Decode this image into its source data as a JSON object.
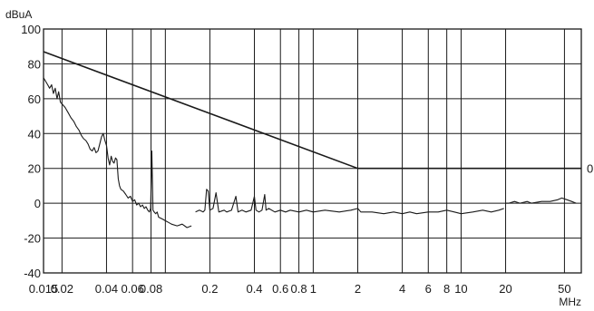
{
  "chart_data": {
    "type": "line",
    "ylabel": "dBuA",
    "xlabel": "MHz",
    "x_scale": "log",
    "xlim": [
      0.015,
      65
    ],
    "ylim": [
      -40,
      100
    ],
    "grid": true,
    "x_ticks": [
      {
        "value": 0.015,
        "label": "0.015"
      },
      {
        "value": 0.02,
        "label": "0.02"
      },
      {
        "value": 0.04,
        "label": "0.04"
      },
      {
        "value": 0.06,
        "label": "0.06"
      },
      {
        "value": 0.08,
        "label": "0.08"
      },
      {
        "value": 0.1,
        "label": ""
      },
      {
        "value": 0.2,
        "label": "0.2"
      },
      {
        "value": 0.4,
        "label": "0.4"
      },
      {
        "value": 0.6,
        "label": "0.6"
      },
      {
        "value": 0.8,
        "label": "0.8"
      },
      {
        "value": 1,
        "label": "1"
      },
      {
        "value": 2,
        "label": "2"
      },
      {
        "value": 4,
        "label": "4"
      },
      {
        "value": 6,
        "label": "6"
      },
      {
        "value": 8,
        "label": "8"
      },
      {
        "value": 10,
        "label": "10"
      },
      {
        "value": 20,
        "label": "20"
      },
      {
        "value": 50,
        "label": "50"
      }
    ],
    "y_ticks": [
      {
        "value": 100,
        "label": "100"
      },
      {
        "value": 80,
        "label": "80"
      },
      {
        "value": 60,
        "label": "60"
      },
      {
        "value": 40,
        "label": "40"
      },
      {
        "value": 20,
        "label": "20"
      },
      {
        "value": 0,
        "label": "0"
      },
      {
        "value": -20,
        "label": "-20"
      },
      {
        "value": -40,
        "label": "-40"
      }
    ],
    "right_annotation": {
      "y": 20,
      "label": "0"
    },
    "series": [
      {
        "role": "limit",
        "color": "#1a1a1a",
        "points": [
          [
            0.015,
            87
          ],
          [
            2,
            20
          ],
          [
            65,
            20
          ]
        ]
      },
      {
        "role": "measurement",
        "color": "#1a1a1a",
        "segments": [
          [
            [
              0.015,
              72
            ],
            [
              0.0155,
              70
            ],
            [
              0.016,
              68
            ],
            [
              0.0165,
              66
            ],
            [
              0.017,
              68
            ],
            [
              0.0175,
              63
            ],
            [
              0.018,
              66
            ],
            [
              0.0185,
              60
            ],
            [
              0.019,
              64
            ],
            [
              0.0195,
              58
            ],
            [
              0.02,
              57
            ],
            [
              0.021,
              55
            ],
            [
              0.022,
              52
            ],
            [
              0.023,
              49
            ],
            [
              0.024,
              47
            ],
            [
              0.025,
              44
            ],
            [
              0.026,
              42
            ],
            [
              0.027,
              39
            ],
            [
              0.028,
              37
            ],
            [
              0.029,
              36
            ],
            [
              0.03,
              34
            ],
            [
              0.031,
              31
            ],
            [
              0.032,
              30
            ],
            [
              0.033,
              32
            ],
            [
              0.034,
              29
            ],
            [
              0.035,
              30
            ],
            [
              0.036,
              34
            ],
            [
              0.037,
              38
            ],
            [
              0.038,
              40
            ],
            [
              0.039,
              36
            ],
            [
              0.04,
              33
            ],
            [
              0.041,
              26
            ],
            [
              0.042,
              22
            ],
            [
              0.043,
              27
            ],
            [
              0.044,
              24
            ],
            [
              0.045,
              23
            ],
            [
              0.046,
              26
            ],
            [
              0.047,
              25
            ],
            [
              0.048,
              14
            ],
            [
              0.049,
              10
            ],
            [
              0.05,
              8
            ],
            [
              0.052,
              7
            ],
            [
              0.054,
              5
            ],
            [
              0.056,
              3
            ],
            [
              0.058,
              4
            ],
            [
              0.06,
              1
            ],
            [
              0.062,
              2
            ],
            [
              0.064,
              -1
            ],
            [
              0.066,
              0
            ],
            [
              0.068,
              -2
            ],
            [
              0.07,
              -1
            ],
            [
              0.072,
              -3
            ],
            [
              0.074,
              -2
            ],
            [
              0.076,
              -4
            ],
            [
              0.078,
              -5
            ],
            [
              0.0795,
              -3
            ],
            [
              0.081,
              30
            ],
            [
              0.0825,
              -4
            ],
            [
              0.084,
              -5
            ],
            [
              0.086,
              -6
            ],
            [
              0.088,
              -5
            ],
            [
              0.09,
              -8
            ],
            [
              0.095,
              -9
            ],
            [
              0.1,
              -10
            ],
            [
              0.105,
              -11
            ],
            [
              0.11,
              -12
            ],
            [
              0.12,
              -13
            ],
            [
              0.13,
              -12
            ],
            [
              0.14,
              -14
            ],
            [
              0.15,
              -13
            ]
          ],
          [
            [
              0.16,
              -5
            ],
            [
              0.17,
              -4
            ],
            [
              0.18,
              -5
            ],
            [
              0.185,
              -4
            ],
            [
              0.19,
              8
            ],
            [
              0.195,
              7
            ],
            [
              0.2,
              -4
            ],
            [
              0.21,
              -3
            ],
            [
              0.22,
              6
            ],
            [
              0.23,
              -5
            ],
            [
              0.25,
              -4
            ],
            [
              0.26,
              -5
            ],
            [
              0.28,
              -4
            ],
            [
              0.3,
              4
            ],
            [
              0.31,
              -5
            ],
            [
              0.33,
              -4
            ],
            [
              0.35,
              -5
            ],
            [
              0.38,
              -4
            ],
            [
              0.4,
              4
            ],
            [
              0.41,
              -4
            ],
            [
              0.43,
              -5
            ],
            [
              0.45,
              -4
            ],
            [
              0.47,
              5
            ],
            [
              0.48,
              -4
            ],
            [
              0.5,
              -3
            ],
            [
              0.55,
              -5
            ],
            [
              0.6,
              -4
            ],
            [
              0.65,
              -5
            ],
            [
              0.7,
              -4
            ],
            [
              0.8,
              -5
            ],
            [
              0.9,
              -4
            ],
            [
              1,
              -5
            ],
            [
              1.2,
              -4
            ],
            [
              1.5,
              -5
            ],
            [
              1.8,
              -4
            ],
            [
              2,
              -3
            ],
            [
              2.1,
              -5
            ],
            [
              2.5,
              -5
            ],
            [
              3,
              -6
            ],
            [
              3.5,
              -5
            ],
            [
              4,
              -6
            ],
            [
              4.5,
              -5
            ],
            [
              5,
              -6
            ],
            [
              6,
              -5
            ],
            [
              7,
              -5
            ],
            [
              8,
              -4
            ],
            [
              9,
              -5
            ],
            [
              10,
              -6
            ],
            [
              12,
              -5
            ],
            [
              14,
              -4
            ],
            [
              16,
              -5
            ],
            [
              18,
              -4
            ],
            [
              19.5,
              -3
            ]
          ],
          [
            [
              20,
              0
            ],
            [
              21,
              0
            ],
            [
              23,
              1
            ],
            [
              25,
              0
            ],
            [
              28,
              1
            ],
            [
              30,
              0
            ],
            [
              35,
              1
            ],
            [
              40,
              1
            ],
            [
              45,
              2
            ],
            [
              48,
              3
            ],
            [
              52,
              2
            ],
            [
              56,
              1
            ],
            [
              60,
              0
            ]
          ]
        ]
      }
    ]
  }
}
